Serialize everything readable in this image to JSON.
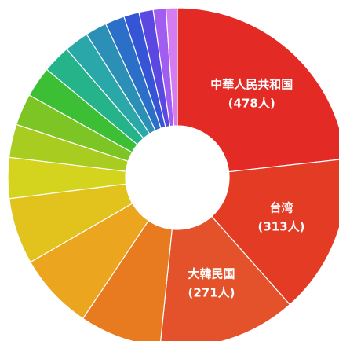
{
  "chart_data": {
    "type": "donut",
    "categories": [
      "中華人民共和国",
      "台湾",
      "大韓民国",
      null,
      null,
      null,
      null,
      null,
      null,
      null,
      null,
      null,
      null,
      null,
      null,
      null,
      null,
      null
    ],
    "values": [
      478,
      313,
      271,
      160,
      150,
      130,
      80,
      65,
      62,
      60,
      55,
      48,
      42,
      38,
      30,
      28,
      25,
      22
    ],
    "value_labels": [
      "(478人)",
      "(313人)",
      "(271人)",
      null,
      null,
      null,
      null,
      null,
      null,
      null,
      null,
      null,
      null,
      null,
      null,
      null,
      null,
      null
    ],
    "colors": [
      "#e32a24",
      "#e43b25",
      "#e3522a",
      "#e87a1f",
      "#eba51e",
      "#e2c21c",
      "#d4d41f",
      "#a8cc1f",
      "#7cc524",
      "#3dbf35",
      "#25b48a",
      "#2aa7a9",
      "#2b8fb6",
      "#2c6fc9",
      "#3554d6",
      "#5b48e0",
      "#a15cf0",
      "#d57cf2"
    ]
  }
}
